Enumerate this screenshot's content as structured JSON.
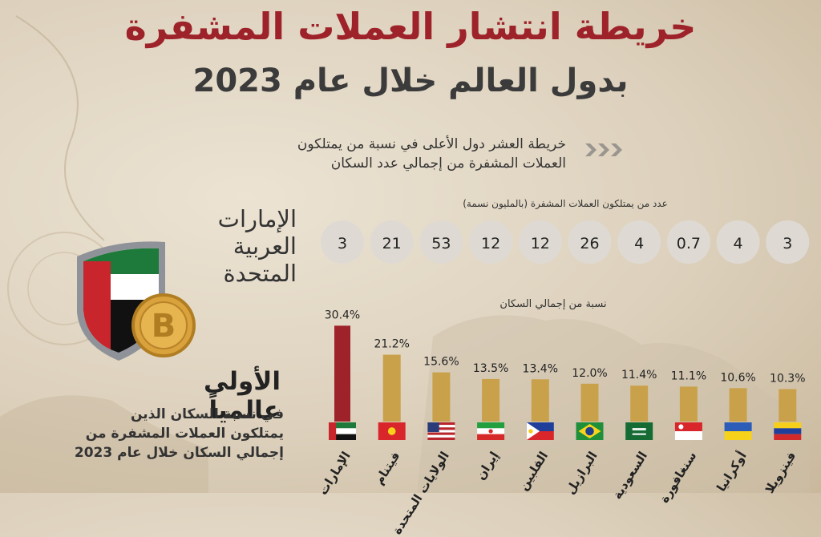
{
  "header": {
    "title": "خريطة انتشار العملات المشفرة",
    "subtitle": "بدول العالم خلال عام 2023"
  },
  "description": {
    "line1": "خريطة العشر دول الأعلى في نسبة من يمتلكون",
    "line2": "العملات المشفرة من إجمالي عدد السكان"
  },
  "highlight": {
    "country_line1": "الإمارات العربية",
    "country_line2": "المتحدة",
    "rank_title": "الأولى عالمياً",
    "rank_desc_line1": "في نسبة السكان الذين",
    "rank_desc_line2": "يمتلكون العملات المشفرة من",
    "rank_desc_line3": "إجمالي السكان خلال عام 2023"
  },
  "colors": {
    "title_red": "#9e2229",
    "top_bar": "#9e2229",
    "bar": "#c9a14a",
    "bubble": "#dedad3"
  },
  "chart_data": {
    "type": "bar",
    "count_label": "عدد من يمتلكون العملات المشفرة (بالمليون نسمة)",
    "pct_label": "نسبة من إجمالي السكان",
    "categories": [
      "الإمارات",
      "فيتنام",
      "الولايات المتحدة",
      "إيران",
      "الفلبين",
      "البرازيل",
      "السعودية",
      "سنغافورة",
      "أوكرانيا",
      "فينزويلا"
    ],
    "values": [
      30.4,
      21.2,
      15.6,
      13.5,
      13.4,
      12.0,
      11.4,
      11.1,
      10.6,
      10.3
    ],
    "value_labels": [
      "30.4%",
      "21.2%",
      "15.6%",
      "13.5%",
      "13.4%",
      "12.0%",
      "11.4%",
      "11.1%",
      "10.6%",
      "10.3%"
    ],
    "counts_millions": [
      "3",
      "21",
      "53",
      "12",
      "12",
      "26",
      "4",
      "0.7",
      "4",
      "3"
    ],
    "ylabel": "نسبة من إجمالي السكان",
    "ylim": [
      0,
      31
    ]
  }
}
